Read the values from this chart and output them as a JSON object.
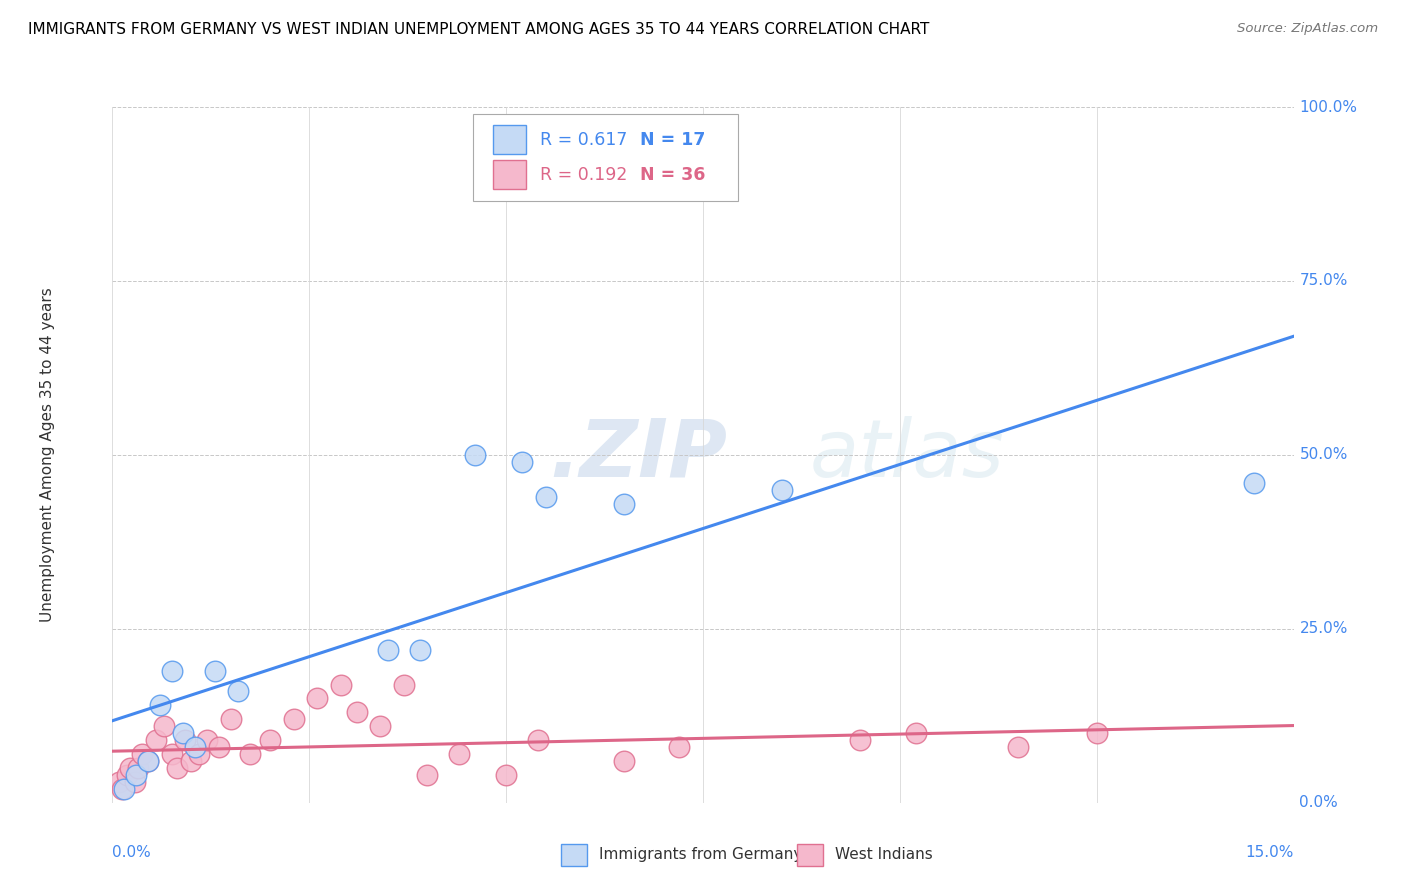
{
  "title": "IMMIGRANTS FROM GERMANY VS WEST INDIAN UNEMPLOYMENT AMONG AGES 35 TO 44 YEARS CORRELATION CHART",
  "source": "Source: ZipAtlas.com",
  "ylabel": "Unemployment Among Ages 35 to 44 years",
  "ytick_labels": [
    "100.0%",
    "75.0%",
    "50.0%",
    "25.0%",
    "0.0%"
  ],
  "ytick_values": [
    100,
    75,
    50,
    25,
    0
  ],
  "xlim": [
    0,
    15
  ],
  "ylim": [
    0,
    100
  ],
  "legend_r1": "R = 0.617",
  "legend_n1": "N = 17",
  "legend_r2": "R = 0.192",
  "legend_n2": "N = 36",
  "legend_label1": "Immigrants from Germany",
  "legend_label2": "West Indians",
  "color_blue_fill": "#c5daf5",
  "color_blue_edge": "#5599ee",
  "color_blue_line": "#4488ee",
  "color_pink_fill": "#f5b8cc",
  "color_pink_edge": "#e07090",
  "color_pink_line": "#dd6688",
  "color_blue_text": "#4488ee",
  "color_pink_text": "#dd6688",
  "watermark_dot": ".",
  "watermark_zip": "ZIP",
  "watermark_atlas": "atlas",
  "germany_x": [
    0.15,
    0.3,
    0.45,
    0.6,
    0.75,
    0.9,
    1.05,
    1.3,
    1.6,
    3.5,
    3.9,
    4.6,
    5.2,
    5.5,
    6.5,
    8.5,
    14.5
  ],
  "germany_y": [
    2,
    4,
    6,
    14,
    19,
    10,
    8,
    19,
    16,
    22,
    22,
    50,
    49,
    44,
    43,
    45,
    46
  ],
  "west_x": [
    0.08,
    0.12,
    0.18,
    0.22,
    0.28,
    0.32,
    0.38,
    0.45,
    0.55,
    0.65,
    0.75,
    0.82,
    0.92,
    1.0,
    1.1,
    1.2,
    1.35,
    1.5,
    1.75,
    2.0,
    2.3,
    2.6,
    2.9,
    3.1,
    3.4,
    3.7,
    4.0,
    4.4,
    5.0,
    5.4,
    6.5,
    7.2,
    9.5,
    10.2,
    11.5,
    12.5
  ],
  "west_y": [
    3,
    2,
    4,
    5,
    3,
    5,
    7,
    6,
    9,
    11,
    7,
    5,
    9,
    6,
    7,
    9,
    8,
    12,
    7,
    9,
    12,
    15,
    17,
    13,
    11,
    17,
    4,
    7,
    4,
    9,
    6,
    8,
    9,
    10,
    8,
    10
  ],
  "xtick_positions": [
    0.0,
    2.5,
    5.0,
    7.5,
    10.0,
    12.5,
    15.0
  ]
}
